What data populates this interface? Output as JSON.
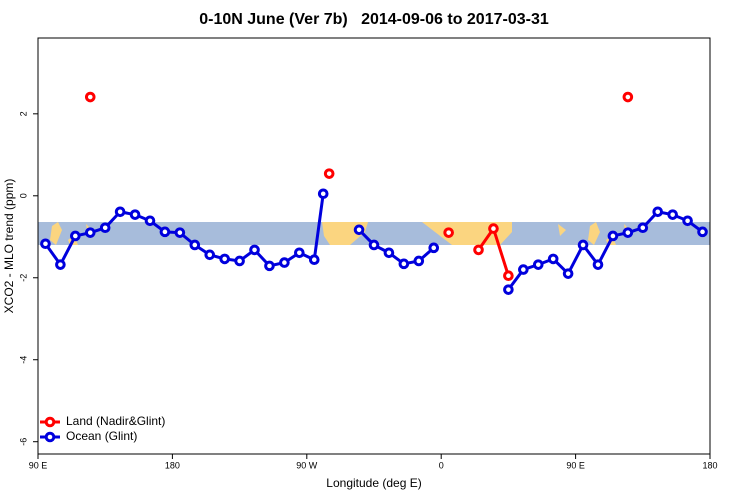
{
  "chart_data": {
    "type": "line",
    "title": "0-10N June (Ver 7b)   2014-09-06 to 2017-03-31",
    "xlabel": "Longitude (deg E)",
    "ylabel": "XCO2 - MLO trend (ppm)",
    "xlim": [
      90,
      540
    ],
    "ylim": [
      -6.3,
      3.85
    ],
    "xticks": [
      {
        "value": 90,
        "label": "90 E"
      },
      180,
      {
        "value": 270,
        "label": "90 W"
      },
      {
        "value": 360,
        "label": "0"
      },
      {
        "value": 450,
        "label": "90 E"
      },
      {
        "value": 540,
        "label": "180"
      }
    ],
    "yticks": [
      -6,
      -4,
      -2,
      0,
      2
    ],
    "legend": "bottom-left",
    "series": [
      {
        "name": "Land (Nadir&Glint)",
        "color": "#ff0000",
        "x": [
          125,
          200,
          285,
          325,
          365,
          375,
          385,
          395,
          405,
          445,
          485
        ],
        "values": [
          2.41,
          null,
          0.54,
          null,
          -0.9,
          null,
          -1.32,
          -0.8,
          -1.95,
          null,
          2.41
        ]
      },
      {
        "name": "Ocean (Glint)",
        "color": "#0000dd",
        "x": [
          95,
          105,
          115,
          125,
          135,
          145,
          155,
          165,
          175,
          185,
          195,
          205,
          215,
          225,
          235,
          245,
          255,
          265,
          275,
          281,
          295,
          305,
          315,
          325,
          335,
          345,
          355,
          380,
          405,
          415,
          425,
          435,
          445,
          455,
          465,
          475,
          485,
          495,
          505,
          515,
          525,
          535
        ],
        "values": [
          -1.17,
          -1.68,
          -0.98,
          -0.9,
          -0.78,
          -0.39,
          -0.46,
          -0.61,
          -0.88,
          -0.9,
          -1.2,
          -1.44,
          -1.54,
          -1.59,
          -1.32,
          -1.71,
          -1.63,
          -1.39,
          -1.56,
          0.05,
          null,
          -0.83,
          -1.2,
          -1.39,
          -1.66,
          -1.59,
          -1.27,
          null,
          -2.29,
          -1.8,
          -1.68,
          -1.54,
          -1.9,
          -1.2,
          -1.68,
          -0.98,
          -0.9,
          -0.78,
          -0.39,
          -0.46,
          -0.61,
          -0.88
        ]
      }
    ]
  }
}
